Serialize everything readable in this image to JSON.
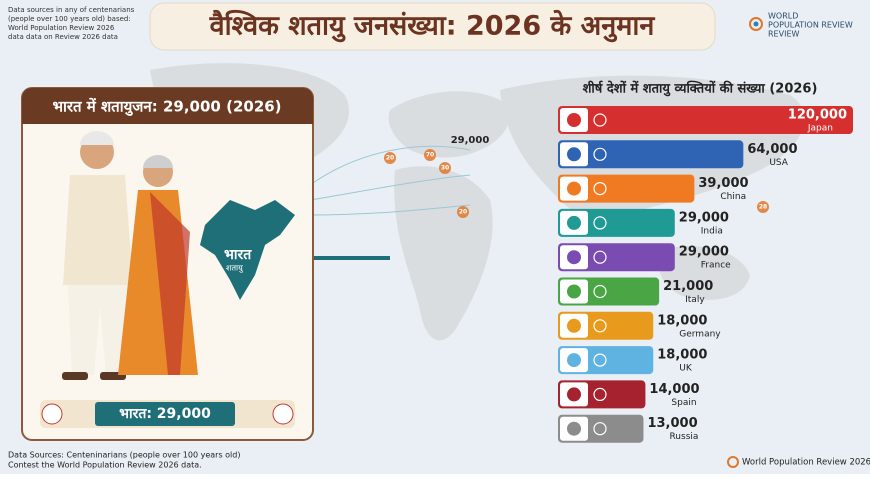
{
  "header": {
    "title": "वैश्विक शतायु जनसंख्या: 2026 के अनुमान",
    "note": [
      "Data sources in any of centenarians",
      "(people over 100 years old) based:",
      "World Population Review 2026",
      "data data on Review 2026 data"
    ],
    "logo": [
      "WORLD",
      "POPULATION REVIEW",
      "REVIEW"
    ]
  },
  "india_panel": {
    "title": "भारत में शतायुजन: 29,000 (2026)",
    "map_label": "भारत",
    "map_sublabel": "शतायु",
    "footer": "भारत: 29,000"
  },
  "map_labels": [
    "29,000",
    "20",
    "70",
    "30",
    "20",
    "28"
  ],
  "chart_data": {
    "type": "bar",
    "orientation": "horizontal",
    "title": "शीर्ष देशों में शतायु व्यक्तियों की संख्या (2026)",
    "categories": [
      "Japan",
      "USA",
      "China",
      "India",
      "France",
      "Italy",
      "Germany",
      "UK",
      "Spain",
      "Russia"
    ],
    "values": [
      120000,
      64000,
      39000,
      29000,
      29000,
      21000,
      18000,
      18000,
      14000,
      13000
    ],
    "value_labels": [
      "120,000",
      "64,000",
      "39,000",
      "29,000",
      "29,000",
      "21,000",
      "18,000",
      "18,000",
      "14,000",
      "13,000"
    ],
    "colors": [
      "#d62f2f",
      "#2f64b5",
      "#ef7a22",
      "#1f9a94",
      "#7a4bb0",
      "#4aa544",
      "#e89a1c",
      "#5fb3e0",
      "#a5222e",
      "#8c8c8c"
    ]
  },
  "footer": {
    "sources": [
      "Data Sources: Centeninarians (people over 100 years old)",
      "Contest the World Population Review 2026 data."
    ],
    "brand": "World Population Review 2026"
  }
}
